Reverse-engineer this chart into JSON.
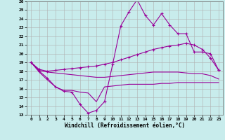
{
  "xlabel": "Windchill (Refroidissement éolien,°C)",
  "background_color": "#c8ecec",
  "grid_color": "#b0b0b0",
  "line_color": "#990099",
  "xlim": [
    -0.5,
    23.5
  ],
  "ylim": [
    13,
    26
  ],
  "yticks": [
    13,
    14,
    15,
    16,
    17,
    18,
    19,
    20,
    21,
    22,
    23,
    24,
    25,
    26
  ],
  "xticks": [
    0,
    1,
    2,
    3,
    4,
    5,
    6,
    7,
    8,
    9,
    10,
    11,
    12,
    13,
    14,
    15,
    16,
    17,
    18,
    19,
    20,
    21,
    22,
    23
  ],
  "line1_x": [
    0,
    1,
    2,
    3,
    4,
    5,
    6,
    7,
    8,
    9,
    10,
    11,
    12,
    13,
    14,
    15,
    16,
    17,
    18,
    19,
    20,
    21,
    22,
    23
  ],
  "line1_y": [
    19.0,
    18.0,
    17.2,
    16.2,
    15.7,
    15.6,
    14.2,
    13.2,
    13.5,
    14.5,
    18.8,
    23.2,
    24.8,
    26.2,
    24.4,
    23.3,
    24.6,
    23.3,
    22.3,
    22.3,
    20.2,
    20.2,
    20.0,
    18.1
  ],
  "line2_x": [
    0,
    1,
    2,
    3,
    4,
    5,
    6,
    7,
    8,
    9,
    10,
    11,
    12,
    13,
    14,
    15,
    16,
    17,
    18,
    19,
    20,
    21,
    22,
    23
  ],
  "line2_y": [
    19.0,
    18.2,
    18.0,
    18.1,
    18.2,
    18.3,
    18.4,
    18.5,
    18.6,
    18.8,
    19.0,
    19.3,
    19.6,
    19.9,
    20.2,
    20.5,
    20.7,
    20.9,
    21.0,
    21.2,
    21.0,
    20.5,
    19.5,
    18.1
  ],
  "line3_x": [
    0,
    1,
    2,
    3,
    4,
    5,
    6,
    7,
    8,
    9,
    10,
    11,
    12,
    13,
    14,
    15,
    16,
    17,
    18,
    19,
    20,
    21,
    22,
    23
  ],
  "line3_y": [
    19.0,
    18.1,
    17.9,
    17.8,
    17.7,
    17.6,
    17.5,
    17.4,
    17.3,
    17.3,
    17.4,
    17.5,
    17.6,
    17.7,
    17.8,
    17.9,
    17.9,
    17.9,
    17.9,
    17.8,
    17.7,
    17.7,
    17.5,
    17.1
  ],
  "line4_x": [
    0,
    1,
    2,
    3,
    4,
    5,
    6,
    7,
    8,
    9,
    10,
    11,
    12,
    13,
    14,
    15,
    16,
    17,
    18,
    19,
    20,
    21,
    22,
    23
  ],
  "line4_y": [
    19.0,
    17.9,
    17.0,
    16.2,
    15.8,
    15.8,
    15.6,
    15.5,
    14.5,
    16.2,
    16.3,
    16.4,
    16.5,
    16.5,
    16.5,
    16.5,
    16.6,
    16.6,
    16.7,
    16.7,
    16.7,
    16.7,
    16.7,
    16.7
  ]
}
